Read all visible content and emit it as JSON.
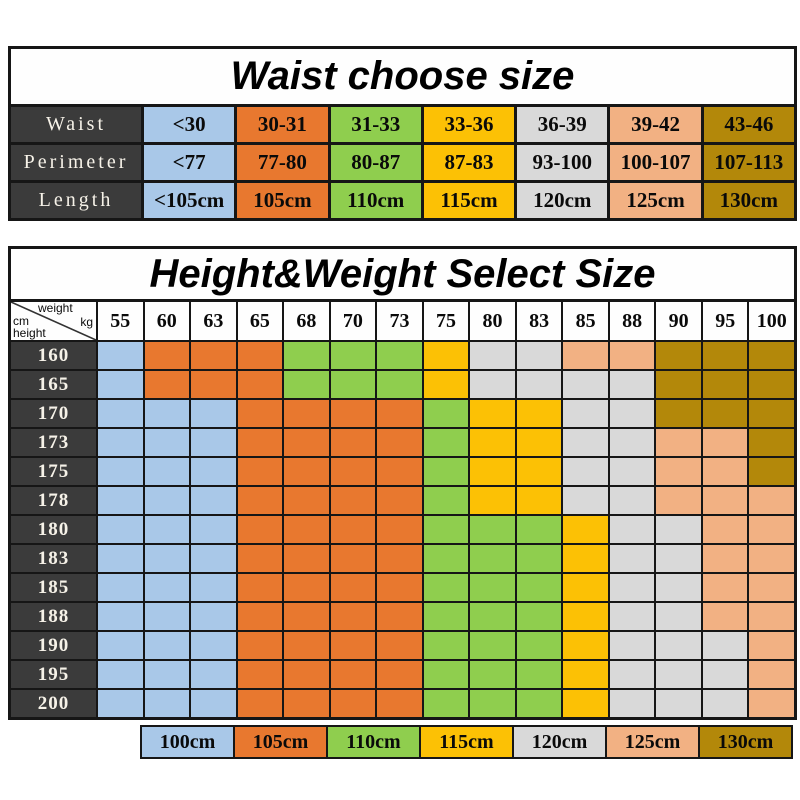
{
  "palette": {
    "B": {
      "name": "blue",
      "hex": "#A9C8E8",
      "size": "100cm"
    },
    "O": {
      "name": "orange",
      "hex": "#E8782F",
      "size": "105cm"
    },
    "G": {
      "name": "green",
      "hex": "#8FCE4E",
      "size": "110cm"
    },
    "Y": {
      "name": "yellow",
      "hex": "#FCC105",
      "size": "115cm"
    },
    "S": {
      "name": "gray",
      "hex": "#D9D9D9",
      "size": "120cm"
    },
    "P": {
      "name": "peach",
      "hex": "#F2B183",
      "size": "125cm"
    },
    "D": {
      "name": "gold",
      "hex": "#B3880A",
      "size": "130cm"
    }
  },
  "waist_table": {
    "title": "Waist choose size",
    "header_color": "#3B3B3B",
    "column_colors": [
      "B",
      "O",
      "G",
      "Y",
      "S",
      "P",
      "D"
    ],
    "rows": [
      {
        "label": "Waist",
        "values": [
          "<30",
          "30-31",
          "31-33",
          "33-36",
          "36-39",
          "39-42",
          "43-46"
        ]
      },
      {
        "label": "Perimeter",
        "values": [
          "<77",
          "77-80",
          "80-87",
          "87-83",
          "93-100",
          "100-107",
          "107-113"
        ]
      },
      {
        "label": "Length",
        "values": [
          "<105cm",
          "105cm",
          "110cm",
          "115cm",
          "120cm",
          "125cm",
          "130cm"
        ]
      }
    ]
  },
  "hw_table": {
    "title": "Height&Weight Select Size",
    "corner": {
      "top_label": "weight",
      "top_unit": "kg",
      "side_unit": "cm",
      "side_label": "height"
    },
    "weights": [
      "55",
      "60",
      "63",
      "65",
      "68",
      "70",
      "73",
      "75",
      "80",
      "83",
      "85",
      "88",
      "90",
      "95",
      "100"
    ],
    "rows": [
      {
        "height": "160",
        "codes": "BOOOGGGYSSPPDDD"
      },
      {
        "height": "165",
        "codes": "BOOOGGGYSSSSDDD"
      },
      {
        "height": "170",
        "codes": "BBBOOOOGYYSSDDD"
      },
      {
        "height": "173",
        "codes": "BBBOOOOGYYSSPPD"
      },
      {
        "height": "175",
        "codes": "BBBOOOOGYYSSPPD"
      },
      {
        "height": "178",
        "codes": "BBBOOOOGYYSSPPP"
      },
      {
        "height": "180",
        "codes": "BBBOOOOGGGYSSPP"
      },
      {
        "height": "183",
        "codes": "BBBOOOOGGGYSSPP"
      },
      {
        "height": "185",
        "codes": "BBBOOOOGGGYSSPP"
      },
      {
        "height": "188",
        "codes": "BBBOOOOGGGYSSPP"
      },
      {
        "height": "190",
        "codes": "BBBOOOOGGGYSSSP"
      },
      {
        "height": "195",
        "codes": "BBBOOOOGGGYSSSP"
      },
      {
        "height": "200",
        "codes": "BBBOOOOGGGYSSSP"
      }
    ]
  },
  "legend": {
    "items": [
      {
        "label": "100cm",
        "color": "B"
      },
      {
        "label": "105cm",
        "color": "O"
      },
      {
        "label": "110cm",
        "color": "G"
      },
      {
        "label": "115cm",
        "color": "Y"
      },
      {
        "label": "120cm",
        "color": "S"
      },
      {
        "label": "125cm",
        "color": "P"
      },
      {
        "label": "130cm",
        "color": "D"
      }
    ]
  }
}
